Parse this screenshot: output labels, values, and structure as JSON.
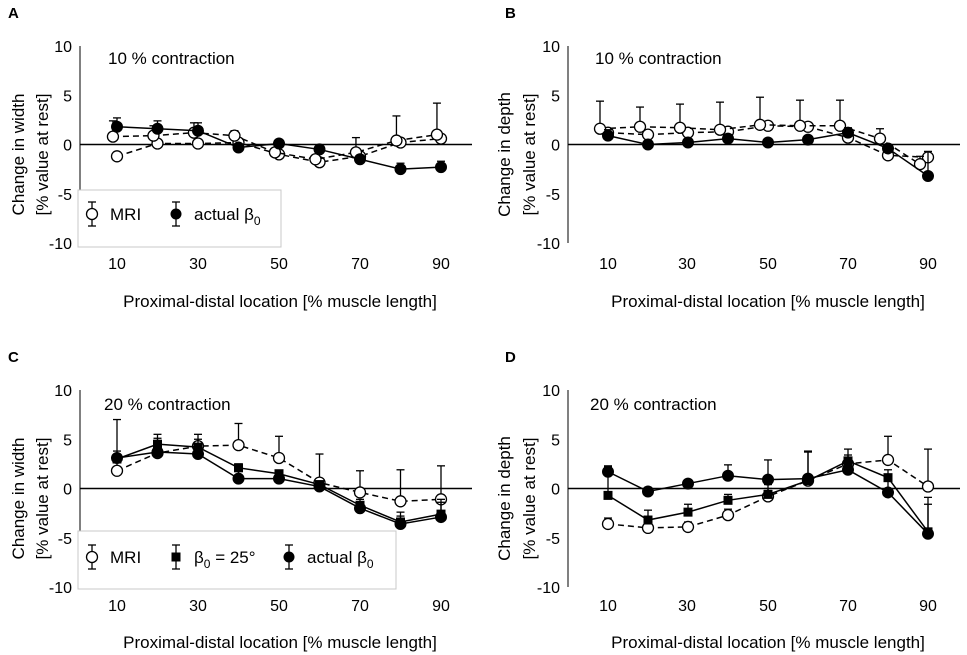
{
  "chart_data": [
    {
      "type": "line",
      "panel_label": "A",
      "title": "10 % contraction",
      "xlabel": "Proximal-distal location [% muscle length]",
      "ylabel_line1": "Change in width",
      "ylabel_line2": "[% value at rest]",
      "x_ticks": [
        "10",
        "30",
        "50",
        "70",
        "90"
      ],
      "y_ticks": [
        "5",
        "0",
        "-5",
        "-10"
      ],
      "y_top_label": "10",
      "ylim": [
        -10,
        10
      ],
      "xlim": [
        0,
        100
      ],
      "legend": [
        {
          "label": "MRI",
          "marker": "open-circle"
        },
        {
          "label": "actual β",
          "subscript": "0",
          "marker": "filled-circle"
        }
      ],
      "series": [
        {
          "name": "MRI (lower)",
          "marker": "open-circle",
          "dash": true,
          "x": [
            10,
            20,
            30,
            40,
            50,
            60,
            70,
            80,
            90
          ],
          "y": [
            -1.2,
            0.1,
            0.1,
            0.2,
            -1.0,
            -1.8,
            -1.2,
            0.2,
            0.6
          ],
          "err": [
            0,
            0,
            0,
            0,
            0,
            0,
            0,
            0,
            0
          ]
        },
        {
          "name": "MRI (upper)",
          "marker": "open-circle",
          "dash": true,
          "x": [
            9,
            19,
            29,
            39,
            49,
            59,
            69,
            79,
            89
          ],
          "y": [
            0.8,
            0.9,
            1.2,
            0.9,
            -0.8,
            -1.5,
            -0.8,
            0.4,
            1.0
          ],
          "err": [
            1.6,
            1.0,
            1.0,
            0.5,
            0.3,
            0.3,
            1.5,
            2.5,
            3.2
          ]
        },
        {
          "name": "actual β0",
          "marker": "filled-circle",
          "dash": false,
          "x": [
            10,
            20,
            30,
            40,
            50,
            60,
            70,
            80,
            90
          ],
          "y": [
            1.8,
            1.6,
            1.4,
            -0.3,
            0.1,
            -0.5,
            -1.5,
            -2.5,
            -2.3
          ],
          "err": [
            0.9,
            0.8,
            0.8,
            0.3,
            0.3,
            0.3,
            0.4,
            0.6,
            0.6
          ]
        }
      ]
    },
    {
      "type": "line",
      "panel_label": "B",
      "title": "10 % contraction",
      "xlabel": "Proximal-distal location [% muscle length]",
      "ylabel_line1": "Change in depth",
      "ylabel_line2": "[% value at rest]",
      "x_ticks": [
        "10",
        "30",
        "50",
        "70",
        "90"
      ],
      "y_ticks": [
        "10",
        "5",
        "0",
        "-5",
        "-10"
      ],
      "ylim": [
        -10,
        10
      ],
      "xlim": [
        0,
        100
      ],
      "legend": [],
      "series": [
        {
          "name": "MRI (lower)",
          "marker": "open-circle",
          "dash": true,
          "x": [
            10,
            20,
            30,
            40,
            50,
            60,
            70,
            80,
            90
          ],
          "y": [
            1.2,
            1.0,
            1.2,
            1.3,
            1.9,
            1.8,
            0.7,
            -1.1,
            -1.3
          ],
          "err": [
            0,
            0,
            0,
            0,
            0,
            0,
            0,
            0,
            0
          ]
        },
        {
          "name": "MRI (upper)",
          "marker": "open-circle",
          "dash": true,
          "x": [
            8,
            18,
            28,
            38,
            48,
            58,
            68,
            78,
            88
          ],
          "y": [
            1.6,
            1.8,
            1.7,
            1.5,
            2.0,
            1.9,
            1.9,
            0.6,
            -2.0
          ],
          "err": [
            2.8,
            2.0,
            2.4,
            2.8,
            2.8,
            2.6,
            2.6,
            1.0,
            0.8
          ]
        },
        {
          "name": "actual β0",
          "marker": "filled-circle",
          "dash": false,
          "x": [
            10,
            20,
            30,
            40,
            50,
            60,
            70,
            80,
            90
          ],
          "y": [
            0.9,
            0.0,
            0.2,
            0.6,
            0.2,
            0.5,
            1.2,
            -0.4,
            -3.2
          ],
          "err": [
            0.6,
            0.4,
            0.3,
            0.4,
            0.3,
            0.4,
            0.5,
            0.4,
            2.5
          ]
        }
      ]
    },
    {
      "type": "line",
      "panel_label": "C",
      "title": "20 % contraction",
      "xlabel": "Proximal-distal location [% muscle length]",
      "ylabel_line1": "Change in width",
      "ylabel_line2": "[% value at rest]",
      "x_ticks": [
        "10",
        "30",
        "50",
        "70",
        "90"
      ],
      "y_ticks": [
        "10",
        "5",
        "0",
        "-5",
        "-10"
      ],
      "ylim": [
        -10,
        10
      ],
      "xlim": [
        0,
        100
      ],
      "legend": [
        {
          "label": "MRI",
          "marker": "open-circle"
        },
        {
          "label": "β",
          "subscript": "0",
          "suffix": " = 25°",
          "marker": "filled-square"
        },
        {
          "label": "actual β",
          "subscript": "0",
          "marker": "filled-circle"
        }
      ],
      "series": [
        {
          "name": "MRI",
          "marker": "open-circle",
          "dash": true,
          "x": [
            10,
            20,
            30,
            40,
            50,
            60,
            70,
            80,
            90
          ],
          "y": [
            1.8,
            3.6,
            4.3,
            4.4,
            3.1,
            0.6,
            -0.4,
            -1.3,
            -1.1
          ],
          "err": [
            0.8,
            1.5,
            1.2,
            2.2,
            2.2,
            2.9,
            2.2,
            3.2,
            3.4
          ]
        },
        {
          "name": "β0 = 25°",
          "marker": "filled-square",
          "dash": false,
          "x": [
            10,
            20,
            30,
            40,
            50,
            60,
            70,
            80,
            90
          ],
          "y": [
            3.0,
            4.5,
            4.2,
            2.1,
            1.5,
            0.4,
            -1.7,
            -3.4,
            -2.6
          ],
          "err": [
            4.0,
            1.0,
            0.8,
            0.4,
            0.3,
            0.3,
            0.6,
            1.0,
            1.5
          ]
        },
        {
          "name": "actual β0",
          "marker": "filled-circle",
          "dash": false,
          "x": [
            10,
            20,
            30,
            40,
            50,
            60,
            70,
            80,
            90
          ],
          "y": [
            3.1,
            3.7,
            3.5,
            1.0,
            1.0,
            0.2,
            -2.0,
            -3.6,
            -2.9
          ],
          "err": [
            0.7,
            0.6,
            0.7,
            0.8,
            0.6,
            0.4,
            0.6,
            0.8,
            1.5
          ]
        }
      ]
    },
    {
      "type": "line",
      "panel_label": "D",
      "title": "20 % contraction",
      "xlabel": "Proximal-distal location [% muscle length]",
      "ylabel_line1": "Change in depth",
      "ylabel_line2": "[% value at rest]",
      "x_ticks": [
        "10",
        "30",
        "50",
        "70",
        "90"
      ],
      "y_ticks": [
        "10",
        "5",
        "0",
        "-5",
        "-10"
      ],
      "ylim": [
        -10,
        10
      ],
      "xlim": [
        0,
        100
      ],
      "legend": [],
      "series": [
        {
          "name": "MRI",
          "marker": "open-circle",
          "dash": true,
          "x": [
            10,
            20,
            30,
            40,
            50,
            60,
            70,
            80,
            90
          ],
          "y": [
            -3.6,
            -4.0,
            -3.9,
            -2.7,
            -0.8,
            0.8,
            2.5,
            2.9,
            0.2
          ],
          "err": [
            0.6,
            0.6,
            0.5,
            0.6,
            1.2,
            2.9,
            1.5,
            2.4,
            3.8
          ]
        },
        {
          "name": "β0 = 25°",
          "marker": "filled-square",
          "dash": false,
          "x": [
            10,
            20,
            30,
            40,
            50,
            60,
            70,
            80,
            90
          ],
          "y": [
            -0.7,
            -3.2,
            -2.4,
            -1.2,
            -0.6,
            0.8,
            2.8,
            1.1,
            -4.4
          ],
          "err": [
            3.0,
            1.0,
            0.8,
            0.6,
            0.6,
            0.5,
            0.6,
            0.8,
            3.5
          ]
        },
        {
          "name": "actual β0",
          "marker": "filled-circle",
          "dash": false,
          "x": [
            10,
            20,
            30,
            40,
            50,
            60,
            70,
            80,
            90
          ],
          "y": [
            1.7,
            -0.3,
            0.5,
            1.3,
            0.9,
            1.0,
            1.9,
            -0.4,
            -4.6
          ],
          "err": [
            0.5,
            0.4,
            0.4,
            1.1,
            2.0,
            2.8,
            1.0,
            1.6,
            3.0
          ]
        }
      ]
    }
  ]
}
